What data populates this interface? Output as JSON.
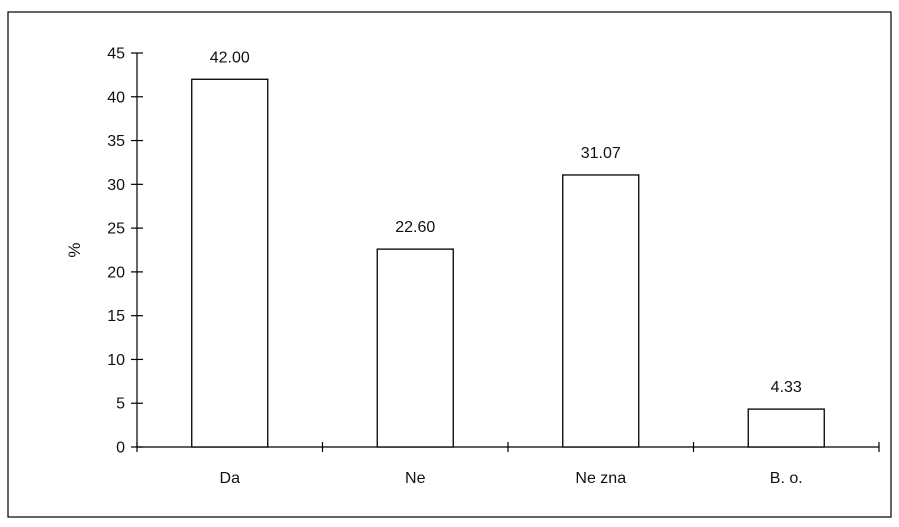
{
  "chart_data": {
    "type": "bar",
    "title": "",
    "xlabel": "",
    "ylabel": "%",
    "categories": [
      "Da",
      "Ne",
      "Ne zna",
      "B. o."
    ],
    "values": [
      42.0,
      22.6,
      31.07,
      4.33
    ],
    "data_labels": [
      "42.00",
      "22.60",
      "31.07",
      "4.33"
    ],
    "ylim": [
      0,
      45
    ],
    "yticks": [
      0,
      5,
      10,
      15,
      20,
      25,
      30,
      35,
      40,
      45
    ],
    "grid": false,
    "legend": "none",
    "colors": {
      "bar_fill": "#ffffff",
      "bar_stroke": "#000000",
      "axis": "#000000",
      "frame": "#000000"
    }
  }
}
